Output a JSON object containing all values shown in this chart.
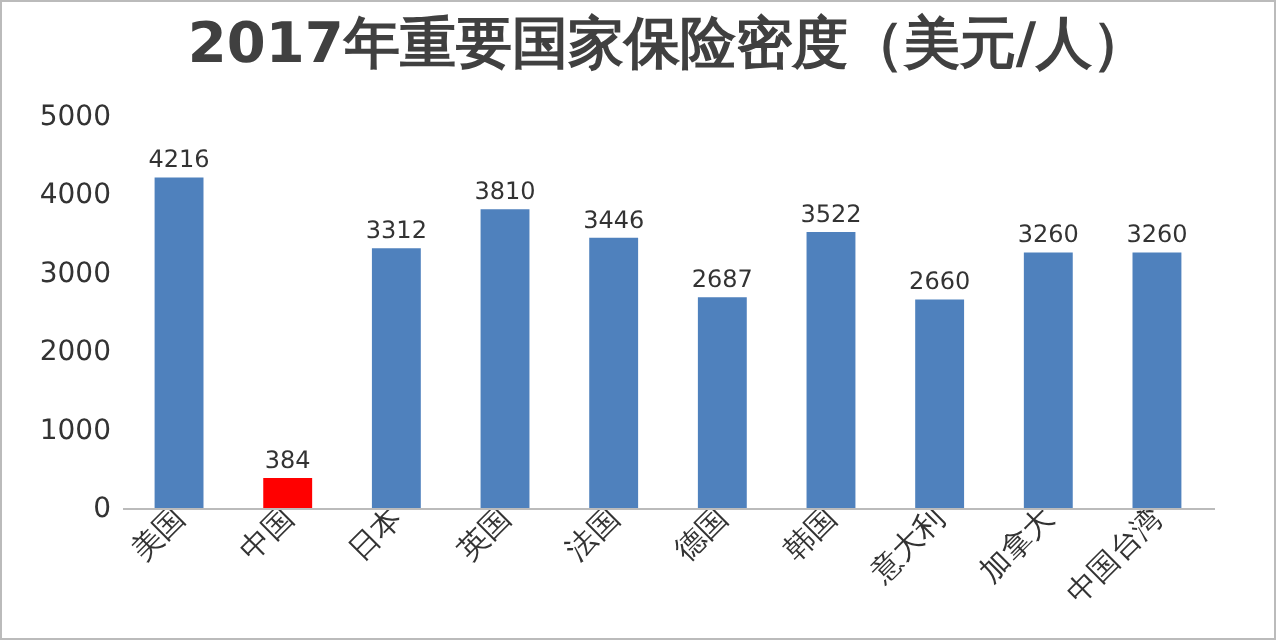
{
  "chart_data": {
    "type": "bar",
    "title": "2017年重要国家保险密度（美元/人）",
    "categories": [
      "美国",
      "中国",
      "日本",
      "英国",
      "法国",
      "德国",
      "韩国",
      "意大利",
      "加拿大",
      "中国台湾"
    ],
    "values": [
      4216,
      384,
      3312,
      3810,
      3446,
      2687,
      3522,
      2660,
      3260,
      3260
    ],
    "colors": [
      "#4f81bd",
      "#ff0000",
      "#4f81bd",
      "#4f81bd",
      "#4f81bd",
      "#4f81bd",
      "#4f81bd",
      "#4f81bd",
      "#4f81bd",
      "#4f81bd"
    ],
    "ylim": [
      0,
      5000
    ],
    "yticks": [
      0,
      1000,
      2000,
      3000,
      4000,
      5000
    ],
    "grid": false,
    "data_labels": true
  }
}
